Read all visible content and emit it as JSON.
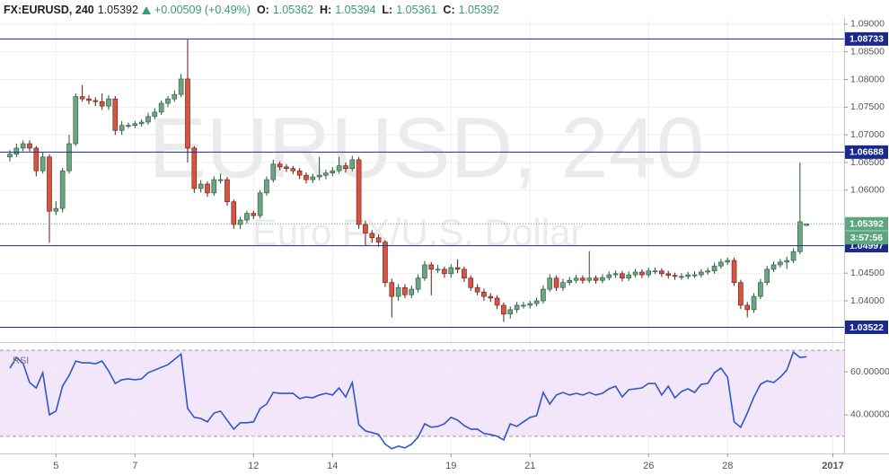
{
  "header": {
    "symbol": "FX:EURUSD, 240",
    "last": "1.05392",
    "change": "+0.00509 (+0.49%)",
    "open_label": "O:",
    "open": "1.05362",
    "high_label": "H:",
    "high": "1.05394",
    "low_label": "L:",
    "low": "1.05361",
    "close_label": "C:",
    "close": "1.05392"
  },
  "chart_data": {
    "type": "candlestick",
    "watermark_title": "EURUSD, 240",
    "watermark_subtitle": "Euro FX/U.S. Dollar",
    "x": [
      0,
      1,
      2,
      3,
      4,
      5,
      6,
      7,
      8,
      9,
      10,
      11,
      12,
      13,
      14,
      15,
      16,
      17,
      18,
      19,
      20,
      21,
      22,
      23,
      24,
      25,
      26,
      27,
      28,
      29,
      30,
      31,
      32,
      33,
      34,
      35,
      36,
      37,
      38,
      39,
      40,
      41,
      42,
      43,
      44,
      45,
      46,
      47,
      48,
      49,
      50,
      51,
      52,
      53,
      54,
      55,
      56,
      57,
      58,
      59,
      60,
      61,
      62,
      63,
      64,
      65,
      66,
      67,
      68,
      69,
      70,
      71,
      72,
      73,
      74,
      75,
      76,
      77,
      78,
      79,
      80,
      81,
      82,
      83,
      84,
      85,
      86,
      87,
      88,
      89,
      90,
      91,
      92,
      93,
      94,
      95,
      96,
      97,
      98,
      99,
      100,
      101,
      102,
      103,
      104,
      105,
      106,
      107,
      108,
      109,
      110,
      111,
      112,
      113,
      114,
      115,
      116,
      117,
      118,
      119,
      120,
      121
    ],
    "open": [
      1.066,
      1.0665,
      1.0676,
      1.0684,
      1.0676,
      1.0635,
      1.066,
      1.0562,
      1.0567,
      1.0635,
      1.0684,
      1.0769,
      1.0765,
      1.0762,
      1.076,
      1.0752,
      1.0765,
      1.0708,
      1.0717,
      1.0717,
      1.072,
      1.0723,
      1.0733,
      1.0741,
      1.0757,
      1.0765,
      1.0773,
      1.0801,
      1.0676,
      1.0603,
      1.0611,
      1.0595,
      1.0619,
      1.0619,
      1.0579,
      1.0538,
      1.0546,
      1.0558,
      1.0554,
      1.0595,
      1.0619,
      1.0647,
      1.0642,
      1.0639,
      1.0635,
      1.0627,
      1.0619,
      1.0624,
      1.0627,
      1.0631,
      1.0635,
      1.0644,
      1.0639,
      1.0655,
      1.0538,
      1.0522,
      1.0514,
      1.0506,
      1.0433,
      1.0408,
      1.0424,
      1.0411,
      1.0421,
      1.0441,
      1.0465,
      1.0457,
      1.0457,
      1.0449,
      1.046,
      1.0457,
      1.0441,
      1.0424,
      1.0416,
      1.0408,
      1.0405,
      1.0392,
      1.0376,
      1.0384,
      1.0392,
      1.0392,
      1.0395,
      1.04,
      1.0421,
      1.0441,
      1.0424,
      1.0433,
      1.0437,
      1.0441,
      1.0437,
      1.0441,
      1.0437,
      1.0442,
      1.0447,
      1.0449,
      1.0441,
      1.0447,
      1.0452,
      1.0447,
      1.0454,
      1.0454,
      1.0449,
      1.0446,
      1.0444,
      1.0444,
      1.0447,
      1.0447,
      1.0452,
      1.0454,
      1.0463,
      1.047,
      1.0473,
      1.0433,
      1.0392,
      1.0384,
      1.0408,
      1.0433,
      1.0457,
      1.0465,
      1.047,
      1.0473,
      1.0489,
      1.05362
    ],
    "high": [
      1.0672,
      1.0684,
      1.069,
      1.069,
      1.068,
      1.0668,
      1.0665,
      1.058,
      1.064,
      1.07,
      1.0775,
      1.079,
      1.0772,
      1.0768,
      1.0775,
      1.0772,
      1.077,
      1.0725,
      1.0722,
      1.0725,
      1.0728,
      1.074,
      1.0748,
      1.0762,
      1.077,
      1.078,
      1.081,
      1.0872,
      1.068,
      1.0618,
      1.0616,
      1.0625,
      1.063,
      1.0624,
      1.0583,
      1.0552,
      1.0563,
      1.0563,
      1.06,
      1.0625,
      1.0655,
      1.0652,
      1.0647,
      1.0644,
      1.064,
      1.0632,
      1.063,
      1.066,
      1.0637,
      1.0642,
      1.066,
      1.065,
      1.0662,
      1.066,
      1.0545,
      1.0528,
      1.052,
      1.051,
      1.044,
      1.043,
      1.043,
      1.0428,
      1.0448,
      1.0472,
      1.047,
      1.0465,
      1.0462,
      1.0466,
      1.0475,
      1.0462,
      1.0446,
      1.043,
      1.0422,
      1.0414,
      1.041,
      1.0397,
      1.039,
      1.0398,
      1.0398,
      1.04,
      1.0406,
      1.0428,
      1.0448,
      1.0446,
      1.044,
      1.0443,
      1.0447,
      1.0446,
      1.049,
      1.0446,
      1.0448,
      1.0453,
      1.0455,
      1.0454,
      1.0453,
      1.0458,
      1.0457,
      1.046,
      1.046,
      1.0459,
      1.0454,
      1.0451,
      1.045,
      1.0452,
      1.0453,
      1.0457,
      1.046,
      1.0469,
      1.0476,
      1.0478,
      1.0478,
      1.0438,
      1.0398,
      1.0414,
      1.044,
      1.0463,
      1.0471,
      1.0476,
      1.048,
      1.0495,
      1.065,
      1.05394
    ],
    "low": [
      1.0652,
      1.066,
      1.067,
      1.067,
      1.0625,
      1.063,
      1.0505,
      1.0555,
      1.056,
      1.063,
      1.068,
      1.076,
      1.0755,
      1.0752,
      1.0745,
      1.0745,
      1.07,
      1.07,
      1.0712,
      1.0712,
      1.0715,
      1.0718,
      1.0728,
      1.0736,
      1.075,
      1.076,
      1.0768,
      1.065,
      1.0595,
      1.0596,
      1.0588,
      1.059,
      1.0612,
      1.0572,
      1.053,
      1.053,
      1.054,
      1.0548,
      1.0549,
      1.059,
      1.0614,
      1.0636,
      1.0633,
      1.0629,
      1.062,
      1.0612,
      1.0613,
      1.0618,
      1.062,
      1.0625,
      1.063,
      1.0632,
      1.0634,
      1.053,
      1.05,
      1.0505,
      1.0498,
      1.0425,
      1.037,
      1.04,
      1.0405,
      1.0405,
      1.0415,
      1.0436,
      1.041,
      1.045,
      1.0442,
      1.0442,
      1.045,
      1.0434,
      1.0418,
      1.041,
      1.04,
      1.0398,
      1.0385,
      1.0362,
      1.0368,
      1.0378,
      1.0386,
      1.0386,
      1.039,
      1.0395,
      1.0416,
      1.0418,
      1.0418,
      1.0428,
      1.0432,
      1.0431,
      1.0432,
      1.0431,
      1.0432,
      1.0437,
      1.0441,
      1.0435,
      1.0436,
      1.0442,
      1.0441,
      1.0442,
      1.0448,
      1.0443,
      1.044,
      1.0438,
      1.0438,
      1.0439,
      1.0441,
      1.0442,
      1.0447,
      1.0449,
      1.0458,
      1.0465,
      1.0427,
      1.0385,
      1.037,
      1.0378,
      1.0403,
      1.0428,
      1.0452,
      1.046,
      1.0458,
      1.0468,
      1.0484,
      1.05361
    ],
    "close": [
      1.0665,
      1.0676,
      1.0684,
      1.0676,
      1.0635,
      1.066,
      1.0562,
      1.0567,
      1.0635,
      1.0684,
      1.0769,
      1.0765,
      1.0762,
      1.076,
      1.0752,
      1.0765,
      1.0708,
      1.0717,
      1.0717,
      1.072,
      1.0723,
      1.0733,
      1.0741,
      1.0757,
      1.0765,
      1.0773,
      1.0801,
      1.0676,
      1.0603,
      1.0611,
      1.0595,
      1.0619,
      1.0619,
      1.0579,
      1.0538,
      1.0546,
      1.0558,
      1.0554,
      1.0595,
      1.0619,
      1.0647,
      1.0642,
      1.0639,
      1.0635,
      1.0627,
      1.0619,
      1.0624,
      1.0627,
      1.0631,
      1.0635,
      1.0644,
      1.0639,
      1.0655,
      1.0538,
      1.0522,
      1.0514,
      1.0506,
      1.0433,
      1.0408,
      1.0424,
      1.0411,
      1.0421,
      1.0441,
      1.0465,
      1.0457,
      1.0457,
      1.0449,
      1.046,
      1.0457,
      1.0441,
      1.0424,
      1.0416,
      1.0408,
      1.0405,
      1.0392,
      1.0376,
      1.0384,
      1.0392,
      1.0392,
      1.0395,
      1.04,
      1.0421,
      1.0441,
      1.0424,
      1.0433,
      1.0437,
      1.0441,
      1.0437,
      1.0441,
      1.0437,
      1.0442,
      1.0447,
      1.0449,
      1.0441,
      1.0447,
      1.0452,
      1.0447,
      1.0454,
      1.0454,
      1.0449,
      1.0446,
      1.0444,
      1.0444,
      1.0447,
      1.0447,
      1.0452,
      1.0454,
      1.0463,
      1.047,
      1.0473,
      1.0433,
      1.0392,
      1.0384,
      1.0408,
      1.0433,
      1.0457,
      1.0465,
      1.047,
      1.0473,
      1.0489,
      1.0543,
      1.05392
    ],
    "up_color": "#6ba583",
    "down_color": "#d75442",
    "up_border": "#225437",
    "down_border": "#5b1a13",
    "xlim": [
      -1.5,
      126.7
    ],
    "xticks": [
      {
        "value": 7,
        "label": "5"
      },
      {
        "value": 19,
        "label": "7"
      },
      {
        "value": 37,
        "label": "12"
      },
      {
        "value": 49,
        "label": "14"
      },
      {
        "value": 67,
        "label": "19"
      },
      {
        "value": 79,
        "label": "21"
      },
      {
        "value": 97,
        "label": "26"
      },
      {
        "value": 109,
        "label": "28"
      },
      {
        "value": 125,
        "label": "2017"
      }
    ],
    "ylim": [
      1.0327,
      1.0908
    ],
    "yticks": [
      {
        "value": 1.04,
        "label": "1.04000"
      },
      {
        "value": 1.045,
        "label": "1.04500"
      },
      {
        "value": 1.06,
        "label": "1.06000"
      },
      {
        "value": 1.065,
        "label": "1.06500"
      },
      {
        "value": 1.07,
        "label": "1.07000"
      },
      {
        "value": 1.075,
        "label": "1.07500"
      },
      {
        "value": 1.08,
        "label": "1.08000"
      },
      {
        "value": 1.085,
        "label": "1.08500"
      },
      {
        "value": 1.09,
        "label": "1.09000"
      }
    ],
    "grid": true,
    "levels": [
      1.08733,
      1.06688,
      1.04997,
      1.03522
    ],
    "level_color": "#1a2a8c",
    "last_color": "#5ba67c",
    "countdown": "3:57:56",
    "rsi": {
      "name": "RSI",
      "color": "#2c57c5",
      "band_color": "#f3e6fa",
      "values": [
        61.7,
        66.7,
        64,
        55,
        52.5,
        59.6,
        40,
        41.7,
        53.3,
        58.3,
        65,
        64.2,
        64.2,
        63.8,
        65,
        60.4,
        54.6,
        56.3,
        56.7,
        56.3,
        56.7,
        59.6,
        60.8,
        62.1,
        63.3,
        65.8,
        68.3,
        42.9,
        38.8,
        38.3,
        36.7,
        40.8,
        41.7,
        37.5,
        33.3,
        36.3,
        36.3,
        36.7,
        42.9,
        45,
        50.4,
        50,
        50,
        50,
        47.5,
        48.3,
        47.9,
        49.2,
        50,
        49.2,
        52.5,
        48.3,
        55,
        35.4,
        32.5,
        31.7,
        30.8,
        26.3,
        24.2,
        25.4,
        24.6,
        26.3,
        29.6,
        35.8,
        34.2,
        34.6,
        35.8,
        38.8,
        37.5,
        35,
        33.3,
        33.3,
        31.3,
        30.8,
        30,
        28.3,
        35.8,
        34.6,
        36.7,
        38.8,
        39.6,
        50.4,
        45,
        49.2,
        50.4,
        49.2,
        50,
        49.2,
        50.4,
        49.2,
        50,
        52.1,
        53.3,
        48.3,
        51.7,
        52.1,
        52.5,
        54.6,
        54.6,
        49.2,
        53.3,
        47.9,
        50.8,
        52.1,
        50.4,
        54.2,
        54.6,
        59.6,
        61.7,
        57.5,
        36.7,
        34.2,
        40.8,
        48.3,
        54.2,
        55.8,
        55,
        57.5,
        60.8,
        69.2,
        66.7,
        67
      ],
      "ylim": [
        22,
        73
      ],
      "yticks": [
        {
          "value": 40,
          "label": "40.00000"
        },
        {
          "value": 60,
          "label": "60.00000"
        }
      ],
      "bands": [
        30,
        70
      ]
    }
  }
}
